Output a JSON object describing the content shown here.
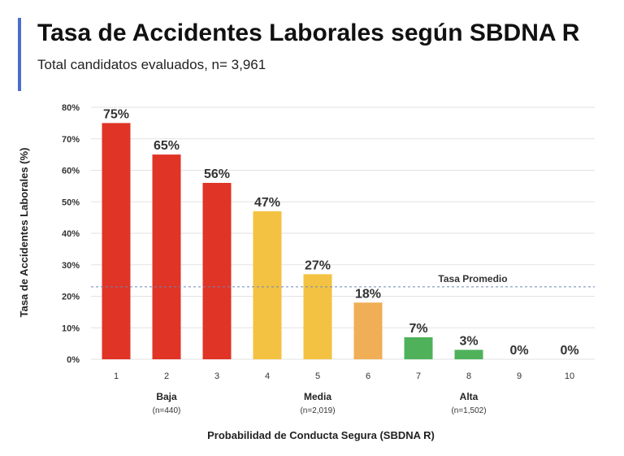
{
  "header": {
    "title": "Tasa de Accidentes Laborales según SBDNA R",
    "subtitle": "Total candidatos evaluados, n= 3,961"
  },
  "chart_data": {
    "type": "bar",
    "categories": [
      "1",
      "2",
      "3",
      "4",
      "5",
      "6",
      "7",
      "8",
      "9",
      "10"
    ],
    "values": [
      75,
      65,
      56,
      47,
      27,
      18,
      7,
      3,
      0,
      0
    ],
    "value_labels": [
      "75%",
      "65%",
      "56%",
      "47%",
      "27%",
      "18%",
      "7%",
      "3%",
      "0%",
      "0%"
    ],
    "colors": [
      "#e03426",
      "#e03426",
      "#e03426",
      "#f3c242",
      "#f3c242",
      "#f0ae56",
      "#4fb25b",
      "#4fb25b",
      "#4fb25b",
      "#4fb25b"
    ],
    "xlabel": "Probabilidad de Conducta Segura (SBDNA R)",
    "ylabel": "Tasa de Accidentes Laborales (%)",
    "ylim": [
      0,
      80
    ],
    "yticks": [
      {
        "value": 0,
        "label": "0%"
      },
      {
        "value": 10,
        "label": "10%"
      },
      {
        "value": 20,
        "label": "20%"
      },
      {
        "value": 30,
        "label": "30%"
      },
      {
        "value": 40,
        "label": "40%"
      },
      {
        "value": 50,
        "label": "50%"
      },
      {
        "value": 60,
        "label": "60%"
      },
      {
        "value": 70,
        "label": "70%"
      },
      {
        "value": 80,
        "label": "80%"
      }
    ],
    "grid": true,
    "average_line": {
      "value": 23,
      "label": "Tasa Promedio",
      "color": "#6a86b8"
    },
    "groups": [
      {
        "label": "Baja",
        "n_label": "(n=440)",
        "center_category": "2"
      },
      {
        "label": "Media",
        "n_label": "(n=2,019)",
        "center_category": "5"
      },
      {
        "label": "Alta",
        "n_label": "(n=1,502)",
        "center_category": "8"
      }
    ]
  }
}
